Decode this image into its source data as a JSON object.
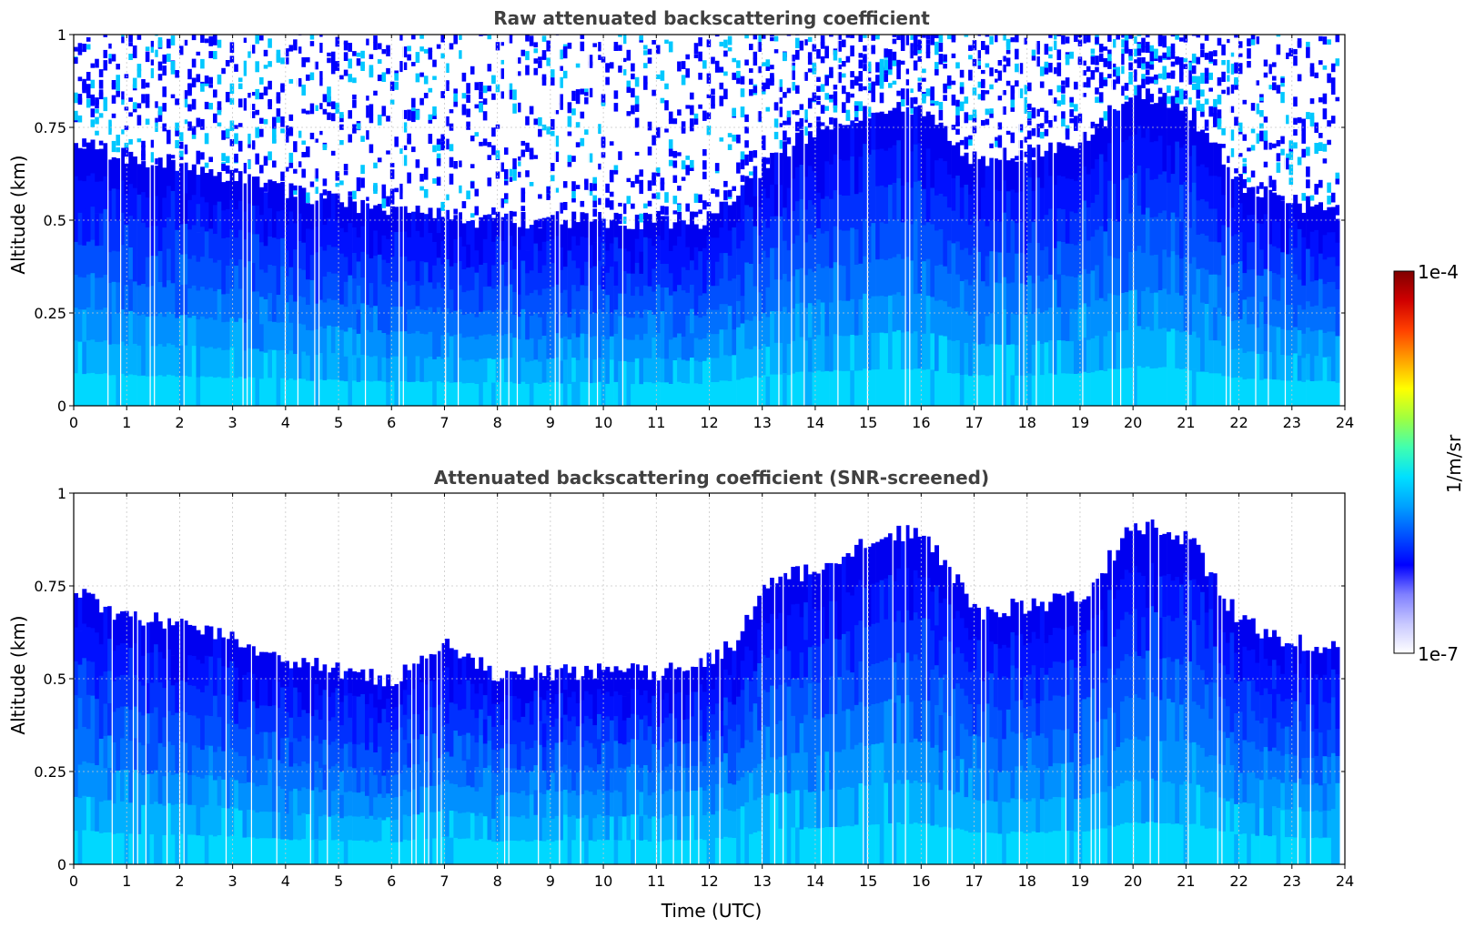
{
  "chart_data": [
    {
      "type": "heatmap",
      "title": "Raw attenuated backscattering coefficient",
      "xlabel": "",
      "ylabel": "Altitude (km)",
      "xlim": [
        0,
        24
      ],
      "ylim": [
        0,
        1
      ],
      "xticks": [
        "0",
        "1",
        "2",
        "3",
        "4",
        "5",
        "6",
        "7",
        "8",
        "9",
        "10",
        "11",
        "12",
        "13",
        "14",
        "15",
        "16",
        "17",
        "18",
        "19",
        "20",
        "21",
        "22",
        "23",
        "24"
      ],
      "yticks": [
        "0",
        "0.25",
        "0.5",
        "0.75",
        "1"
      ],
      "grid": true,
      "colorscale": "jet (log)",
      "data_extent_hours": [
        0,
        23.9
      ],
      "signal_top_km": {
        "hours": [
          0,
          2,
          4,
          6,
          8,
          10,
          12,
          13,
          14,
          15,
          16,
          17,
          18,
          19,
          20,
          21,
          22,
          23,
          23.9
        ],
        "values": [
          0.7,
          0.65,
          0.58,
          0.52,
          0.5,
          0.5,
          0.5,
          0.65,
          0.75,
          0.8,
          0.8,
          0.66,
          0.68,
          0.72,
          0.85,
          0.8,
          0.6,
          0.55,
          0.52
        ]
      }
    },
    {
      "type": "heatmap",
      "title": "Attenuated backscattering coefficient (SNR-screened)",
      "xlabel": "Time (UTC)",
      "ylabel": "Altitude (km)",
      "xlim": [
        0,
        24
      ],
      "ylim": [
        0,
        1
      ],
      "xticks": [
        "0",
        "1",
        "2",
        "3",
        "4",
        "5",
        "6",
        "7",
        "8",
        "9",
        "10",
        "11",
        "12",
        "13",
        "14",
        "15",
        "16",
        "17",
        "18",
        "19",
        "20",
        "21",
        "22",
        "23",
        "24"
      ],
      "yticks": [
        "0",
        "0.25",
        "0.5",
        "0.75",
        "1"
      ],
      "grid": true,
      "colorscale": "jet (log)",
      "data_extent_hours": [
        0,
        23.9
      ],
      "signal_top_km": {
        "hours": [
          0,
          1,
          2,
          3,
          4,
          5,
          6,
          7,
          8,
          9,
          10,
          11,
          12,
          12.5,
          13,
          14,
          15,
          16,
          17,
          18,
          19,
          20,
          21,
          22,
          23,
          23.9
        ],
        "values": [
          0.74,
          0.66,
          0.65,
          0.6,
          0.55,
          0.52,
          0.5,
          0.6,
          0.5,
          0.52,
          0.52,
          0.52,
          0.55,
          0.6,
          0.75,
          0.8,
          0.88,
          0.9,
          0.68,
          0.7,
          0.72,
          0.92,
          0.88,
          0.65,
          0.6,
          0.58
        ]
      }
    }
  ],
  "colorbar": {
    "max_label": "1e-4",
    "min_label": "1e-7",
    "units": "1/m/sr",
    "scale": "log",
    "range": [
      1e-07,
      0.0001
    ],
    "colors": [
      "#ffffff",
      "#c8c8ff",
      "#8080ff",
      "#0000ff",
      "#0050ff",
      "#00a0ff",
      "#00e0ff",
      "#40ffb0",
      "#a0ff40",
      "#ffff00",
      "#ffa000",
      "#ff4000",
      "#d00000",
      "#800000"
    ]
  }
}
